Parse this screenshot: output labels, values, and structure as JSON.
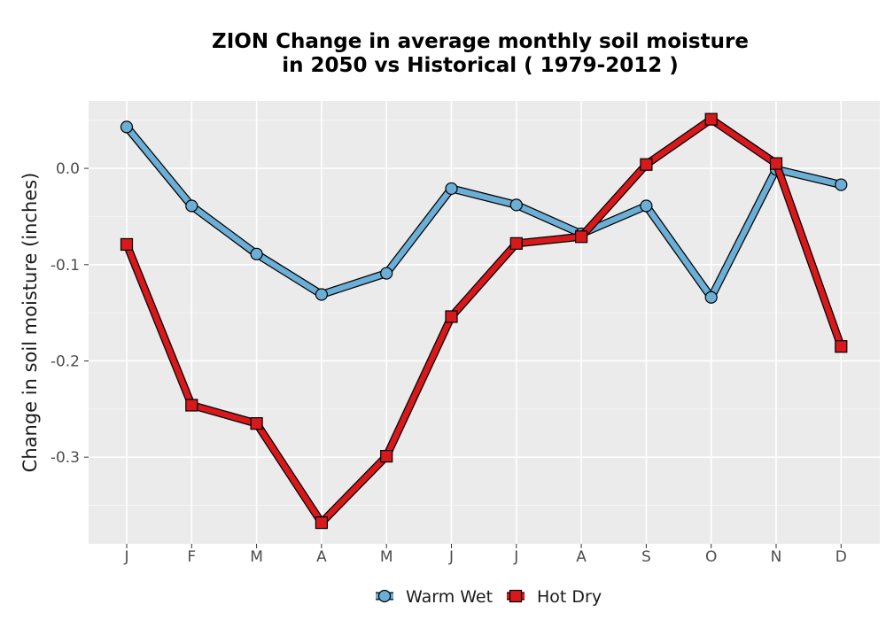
{
  "chart_data": {
    "type": "line",
    "title_line1": "ZION  Change in average monthly soil moisture",
    "title_line2": "in 2050 vs Historical ( 1979-2012 )",
    "xlabel": "",
    "ylabel": "Change in soil moisture (inches)",
    "categories": [
      "J",
      "F",
      "M",
      "A",
      "M",
      "J",
      "J",
      "A",
      "S",
      "O",
      "N",
      "D"
    ],
    "ylim": [
      -0.39,
      0.07
    ],
    "yticks": [
      0.0,
      -0.1,
      -0.2,
      -0.3
    ],
    "ytick_labels": [
      "0.0",
      "-0.1",
      "-0.2",
      "-0.3"
    ],
    "grid": true,
    "legend_position": "bottom",
    "series": [
      {
        "name": "Warm Wet",
        "color": "#6baed6",
        "marker": "circle",
        "values": [
          0.043,
          -0.039,
          -0.089,
          -0.131,
          -0.109,
          -0.021,
          -0.038,
          -0.068,
          -0.039,
          -0.134,
          -0.001,
          -0.017
        ]
      },
      {
        "name": "Hot Dry",
        "color": "#d7191c",
        "marker": "square",
        "values": [
          -0.079,
          -0.246,
          -0.265,
          -0.368,
          -0.299,
          -0.154,
          -0.078,
          -0.071,
          0.004,
          0.051,
          0.005,
          -0.185
        ]
      }
    ]
  }
}
